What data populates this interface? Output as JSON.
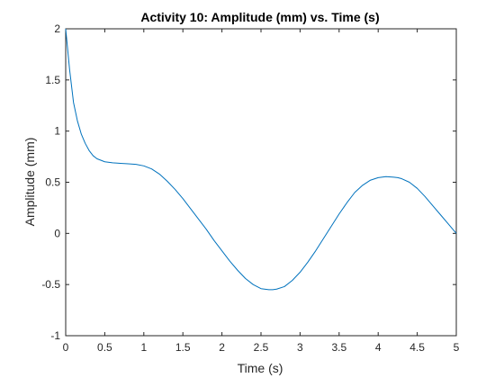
{
  "chart_data": {
    "type": "line",
    "title": "Activity 10: Amplitude (mm) vs. Time (s)",
    "xlabel": "Time (s)",
    "ylabel": "Amplitude (mm)",
    "xlim": [
      0,
      5
    ],
    "ylim": [
      -1,
      2
    ],
    "xticks": [
      0,
      0.5,
      1,
      1.5,
      2,
      2.5,
      3,
      3.5,
      4,
      4.5,
      5
    ],
    "xtick_labels": [
      "0",
      "0.5",
      "1",
      "1.5",
      "2",
      "2.5",
      "3",
      "3.5",
      "4",
      "4.5",
      "5"
    ],
    "yticks": [
      -1,
      -0.5,
      0,
      0.5,
      1,
      1.5,
      2
    ],
    "ytick_labels": [
      "-1",
      "-0.5",
      "0",
      "0.5",
      "1",
      "1.5",
      "2"
    ],
    "grid": false,
    "series": [
      {
        "color": "#0072BD",
        "x": [
          0,
          0.05,
          0.1,
          0.15,
          0.2,
          0.25,
          0.3,
          0.35,
          0.4,
          0.5,
          0.6,
          0.7,
          0.8,
          0.9,
          1.0,
          1.1,
          1.2,
          1.3,
          1.4,
          1.5,
          1.6,
          1.7,
          1.8,
          1.9,
          2.0,
          2.1,
          2.2,
          2.3,
          2.4,
          2.5,
          2.6,
          2.65,
          2.7,
          2.8,
          2.9,
          3.0,
          3.1,
          3.2,
          3.3,
          3.4,
          3.5,
          3.6,
          3.7,
          3.8,
          3.9,
          4.0,
          4.1,
          4.2,
          4.25,
          4.3,
          4.4,
          4.5,
          4.6,
          4.7,
          4.8,
          4.9,
          5.0
        ],
        "y": [
          2.0,
          1.6,
          1.28,
          1.1,
          0.97,
          0.88,
          0.81,
          0.76,
          0.73,
          0.7,
          0.69,
          0.685,
          0.68,
          0.675,
          0.66,
          0.63,
          0.58,
          0.51,
          0.43,
          0.34,
          0.24,
          0.14,
          0.04,
          -0.07,
          -0.17,
          -0.27,
          -0.36,
          -0.44,
          -0.5,
          -0.54,
          -0.55,
          -0.55,
          -0.545,
          -0.52,
          -0.46,
          -0.38,
          -0.28,
          -0.17,
          -0.05,
          0.07,
          0.19,
          0.3,
          0.4,
          0.47,
          0.52,
          0.545,
          0.555,
          0.55,
          0.545,
          0.535,
          0.5,
          0.44,
          0.36,
          0.27,
          0.18,
          0.09,
          0.0
        ]
      }
    ]
  }
}
